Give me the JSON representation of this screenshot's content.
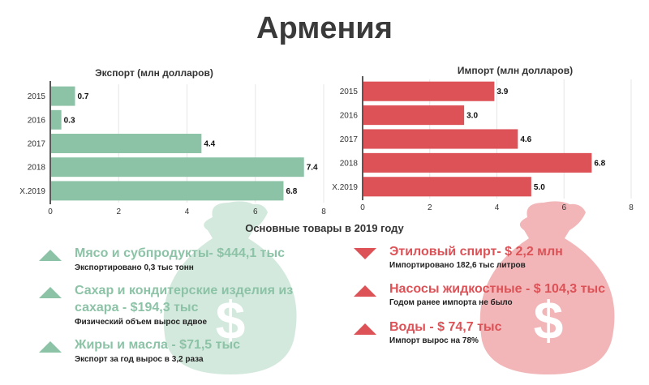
{
  "title": "Армения",
  "colors": {
    "export": "#8cc3a6",
    "import": "#dc5257",
    "bag_export": "#d4e9dd",
    "bag_import": "#f2b6b8"
  },
  "chart_data": [
    {
      "type": "bar",
      "orientation": "horizontal",
      "title": "Экспорт (млн долларов)",
      "categories": [
        "2015",
        "2016",
        "2017",
        "2018",
        "X.2019"
      ],
      "values": [
        0.7,
        0.3,
        4.4,
        7.4,
        6.8
      ],
      "value_labels": [
        "0.7",
        "0.3",
        "4.4",
        "7.4",
        "6.8"
      ],
      "xlim": [
        0,
        8
      ],
      "x_ticks": [
        "0",
        "2",
        "4",
        "6",
        "8"
      ],
      "grid": true,
      "color": "#8cc3a6"
    },
    {
      "type": "bar",
      "orientation": "horizontal",
      "title": "Импорт (млн долларов)",
      "categories": [
        "2015",
        "2016",
        "2017",
        "2018",
        "X.2019"
      ],
      "values": [
        3.9,
        3.0,
        4.6,
        6.8,
        5.0
      ],
      "value_labels": [
        "3.9",
        "3.0",
        "4.6",
        "6.8",
        "5.0"
      ],
      "xlim": [
        0,
        8
      ],
      "x_ticks": [
        "0",
        "2",
        "4",
        "6",
        "8"
      ],
      "grid": true,
      "color": "#dc5257"
    }
  ],
  "section_title": "Основные товары в 2019 году",
  "export_items": [
    {
      "title": "Мясо и субпродукты- $444,1 тыс",
      "note": "Экспортировано 0,3 тыс тонн",
      "icon": "triangle-up-icon"
    },
    {
      "title": "Сахар и кондитерские изделия из сахара - $194,3 тыс",
      "note": "Физический объем вырос вдвое",
      "icon": "triangle-up-icon"
    },
    {
      "title": "Жиры и масла - $71,5 тыс",
      "note": "Экспорт за год вырос в 3,2 раза",
      "icon": "triangle-up-icon"
    }
  ],
  "import_items": [
    {
      "title": "Этиловый спирт- $ 2,2 млн",
      "note": "Импортировано 182,6 тыс литров",
      "icon": "triangle-down-icon"
    },
    {
      "title": "Насосы жидкостные - $ 104,3 тыс",
      "note": "Годом ранее импорта не было",
      "icon": "triangle-up-icon"
    },
    {
      "title": "Воды - $ 74,7 тыс",
      "note": "Импорт вырос на 78%",
      "icon": "triangle-up-icon"
    }
  ],
  "bag_symbol": "$"
}
